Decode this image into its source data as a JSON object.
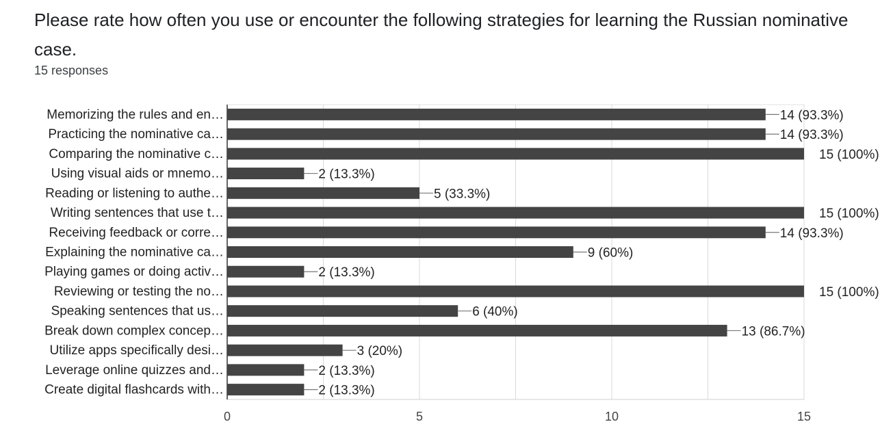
{
  "header": {
    "question": "Please rate how often you use or encounter the following strategies for learning the Russian nominative case.",
    "response_count": "15 responses"
  },
  "chart_data": {
    "type": "bar",
    "orientation": "horizontal",
    "categories": [
      "Memorizing the rules and en…",
      "Practicing the nominative ca…",
      "Comparing the nominative c…",
      "Using visual aids or mnemo…",
      "Reading or listening to authe…",
      "Writing sentences that use t…",
      "Receiving feedback or corre…",
      "Explaining the nominative ca…",
      "Playing games or doing activ…",
      "Reviewing or testing the no…",
      "Speaking sentences that us…",
      "Break down complex concep…",
      "Utilize apps specifically desi…",
      "Leverage online quizzes and…",
      "Create digital flashcards with…"
    ],
    "values": [
      14,
      14,
      15,
      2,
      5,
      15,
      14,
      9,
      2,
      15,
      6,
      13,
      3,
      2,
      2
    ],
    "value_labels": [
      "14 (93.3%)",
      "14 (93.3%)",
      "15 (100%)",
      "2 (13.3%)",
      "5 (33.3%)",
      "15 (100%)",
      "14 (93.3%)",
      "9 (60%)",
      "2 (13.3%)",
      "15 (100%)",
      "6 (40%)",
      "13 (86.7%)",
      "3 (20%)",
      "2 (13.3%)",
      "2 (13.3%)"
    ],
    "xlim": [
      0,
      15
    ],
    "xticks": [
      0,
      5,
      10,
      15
    ],
    "grid": true,
    "bar_color": "#444444"
  }
}
